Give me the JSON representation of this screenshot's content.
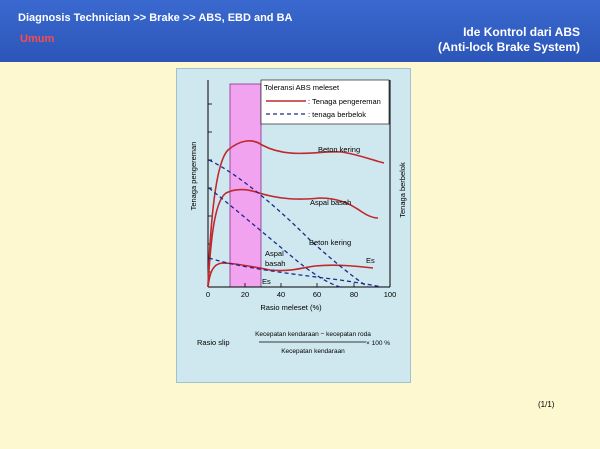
{
  "header": {
    "breadcrumb": "Diagnosis Technician >> Brake  >> ABS, EBD and BA",
    "section": "Umum",
    "title_line1": "Ide Kontrol dari ABS",
    "title_line2": "(Anti-lock Brake System)"
  },
  "diagram": {
    "zone_label": "Toleransi ABS meleset",
    "legend": [
      {
        "label": ": Tenaga pengereman",
        "style": "solid",
        "color": "#c0282d"
      },
      {
        "label": ": tenaga berbelok",
        "style": "dashed",
        "color": "#1f2a8a"
      }
    ],
    "ylabel_left": "Tenaga pengereman",
    "ylabel_right": "Tenaga berbelok",
    "xlabel": "Rasio meleset (%)",
    "x_ticks": [
      "0",
      "20",
      "40",
      "60",
      "80",
      "100"
    ],
    "curve_labels": {
      "beton_kering_solid": "Beton kering",
      "aspal_basah_solid": "Aspal basah",
      "beton_kering_dashed": "Beton kering",
      "aspal_basah_dashed_line1": "Aspal",
      "aspal_basah_dashed_line2": "basah",
      "es_solid": "Es",
      "es_dashed": "Es"
    },
    "formula": {
      "label": "Rasio slip",
      "numerator": "Kecepatan kendaraan − kecepatan roda",
      "denominator": "Kecepatan kendaraan",
      "multiplier": "× 100 %"
    }
  },
  "footer": {
    "page": "(1/1)"
  },
  "colors": {
    "header": "#2f5cc4",
    "background": "#fdf8cf",
    "panel": "#cfe8ef",
    "zone": "#f2a3f0",
    "solid_curve": "#c0282d",
    "dashed_curve": "#1f2a8a"
  }
}
